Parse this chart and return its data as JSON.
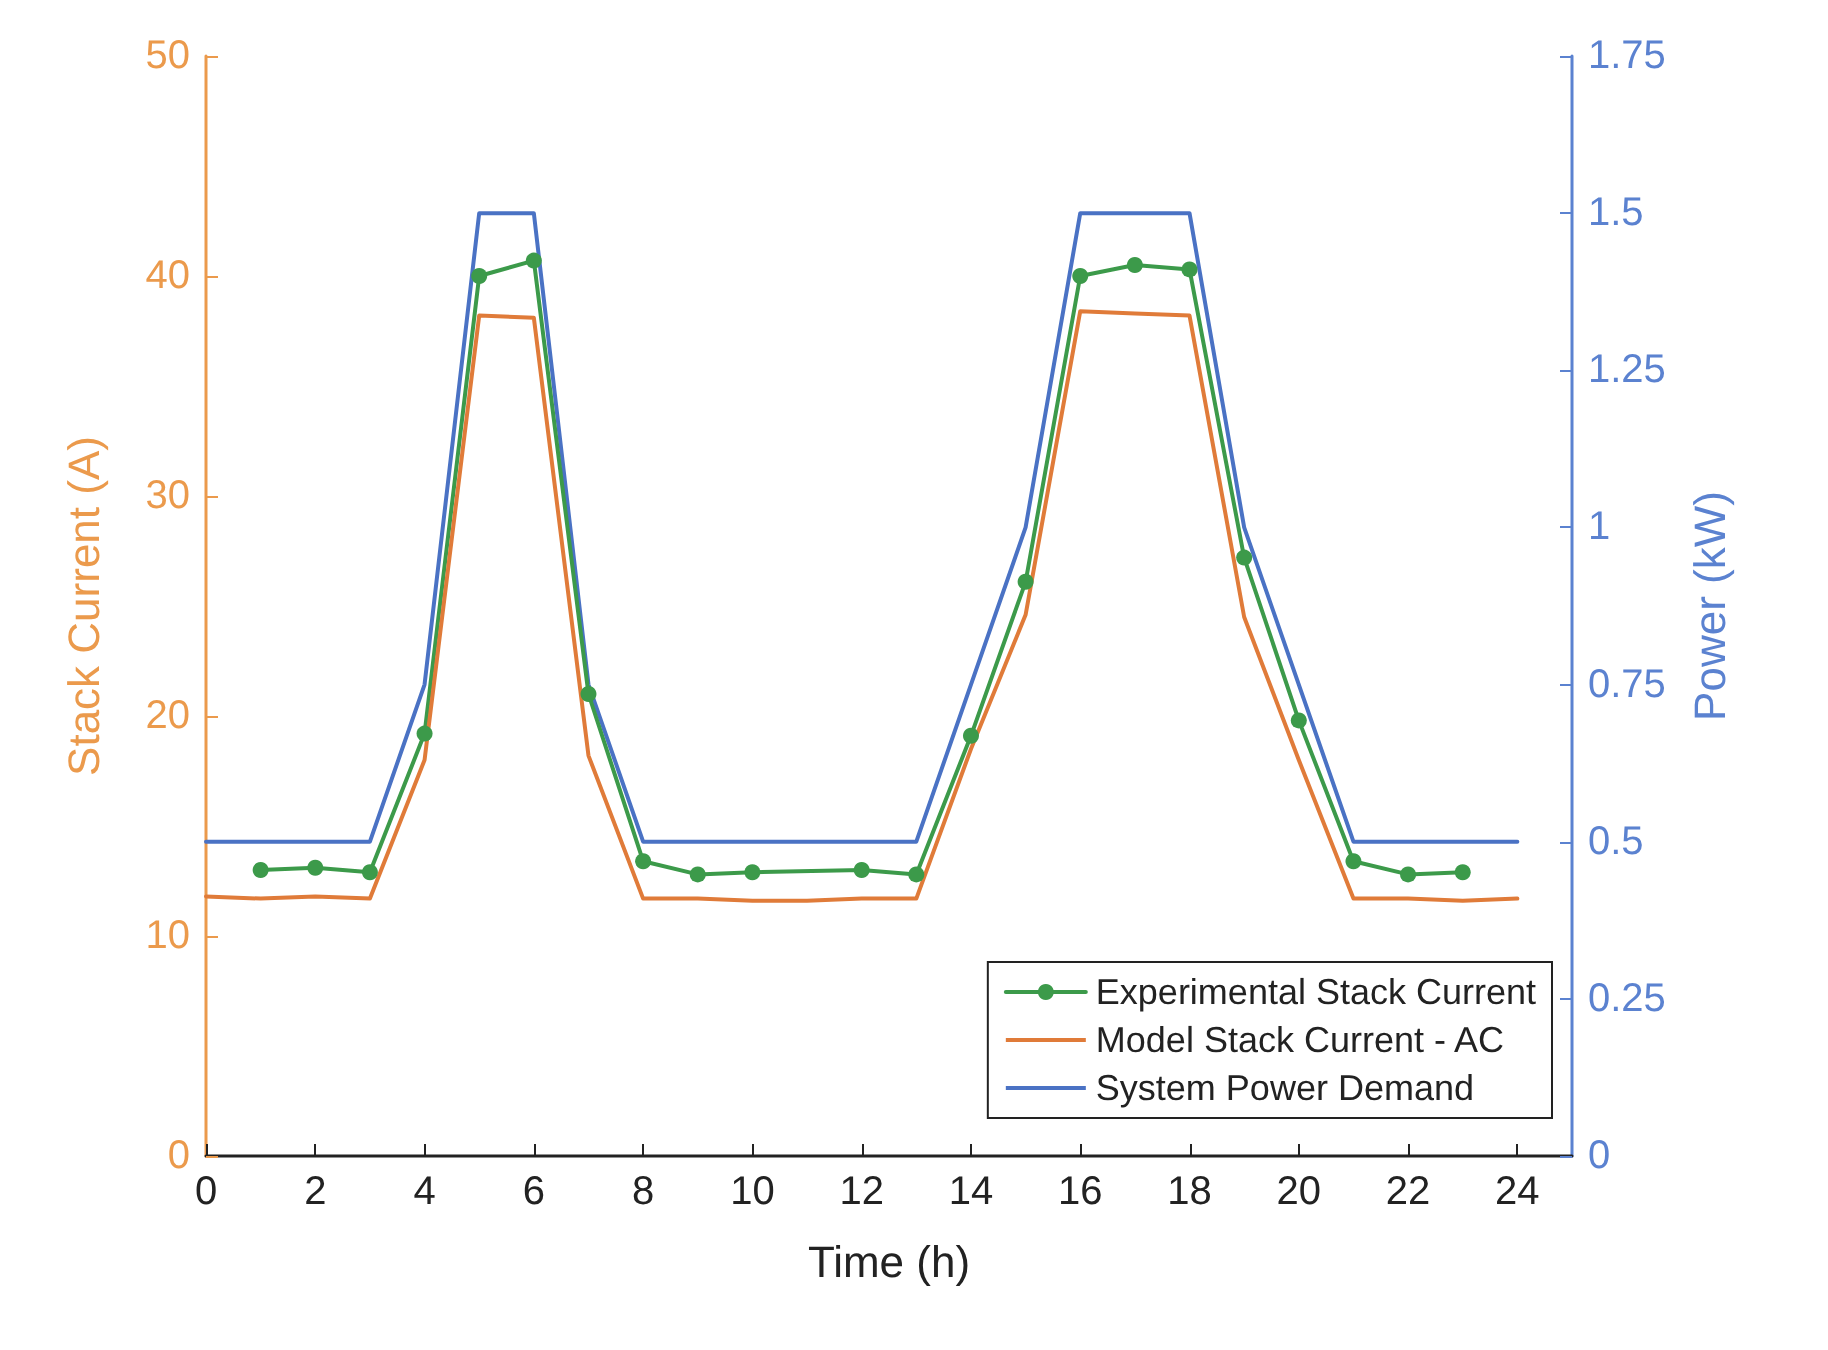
{
  "chart_data": {
    "type": "line",
    "xlabel": "Time (h)",
    "ylabel": "Stack Current (A)",
    "y2label": "Power (kW)",
    "xlim": [
      0,
      25
    ],
    "xticks": [
      0,
      2,
      4,
      6,
      8,
      10,
      12,
      14,
      16,
      18,
      20,
      22,
      24
    ],
    "ylim": [
      0,
      50
    ],
    "yticks": [
      0,
      10,
      20,
      30,
      40,
      50
    ],
    "y2lim": [
      0,
      1.75
    ],
    "y2ticks": [
      0,
      0.25,
      0.5,
      0.75,
      1,
      1.25,
      1.5,
      1.75
    ],
    "grid": false,
    "legend": "bottom right",
    "line_style": "solid",
    "series": [
      {
        "name": "Experimental Stack Current",
        "color": "#3c9a4a",
        "marker": "circle",
        "x": [
          1,
          2,
          3,
          4,
          5,
          6,
          7,
          8,
          9,
          10,
          12,
          13,
          14,
          15,
          16,
          17,
          18,
          19,
          20,
          21,
          22,
          23
        ],
        "values": [
          13.0,
          13.1,
          12.9,
          19.2,
          40.0,
          40.7,
          21.0,
          13.4,
          12.8,
          12.9,
          13.0,
          12.8,
          19.1,
          26.1,
          40.0,
          40.5,
          40.3,
          27.2,
          19.8,
          13.4,
          12.8,
          12.9
        ]
      },
      {
        "name": "Model Stack Current - AC",
        "color": "#e07b39",
        "marker": "none",
        "x": [
          0,
          1,
          2,
          3,
          4,
          5,
          6,
          7,
          8,
          9,
          10,
          11,
          12,
          13,
          14,
          15,
          16,
          17,
          18,
          19,
          20,
          21,
          22,
          23,
          24
        ],
        "values": [
          11.8,
          11.7,
          11.8,
          11.7,
          18.0,
          38.2,
          38.1,
          18.2,
          11.7,
          11.7,
          11.6,
          11.6,
          11.7,
          11.7,
          18.5,
          24.6,
          38.4,
          38.3,
          38.2,
          24.5,
          18.0,
          11.7,
          11.7,
          11.6,
          11.7
        ]
      },
      {
        "name": "System Power Demand",
        "color": "#4a72c4",
        "marker": "none",
        "axis": "y2",
        "x": [
          0,
          1,
          2,
          3,
          4,
          5,
          6,
          7,
          8,
          9,
          10,
          11,
          12,
          13,
          14,
          15,
          16,
          17,
          18,
          19,
          20,
          21,
          22,
          23,
          24
        ],
        "values": [
          0.5,
          0.5,
          0.5,
          0.5,
          0.75,
          1.5,
          1.5,
          0.75,
          0.5,
          0.5,
          0.5,
          0.5,
          0.5,
          0.5,
          0.75,
          1.0,
          1.5,
          1.5,
          1.5,
          1.0,
          0.75,
          0.5,
          0.5,
          0.5,
          0.5
        ]
      }
    ]
  }
}
